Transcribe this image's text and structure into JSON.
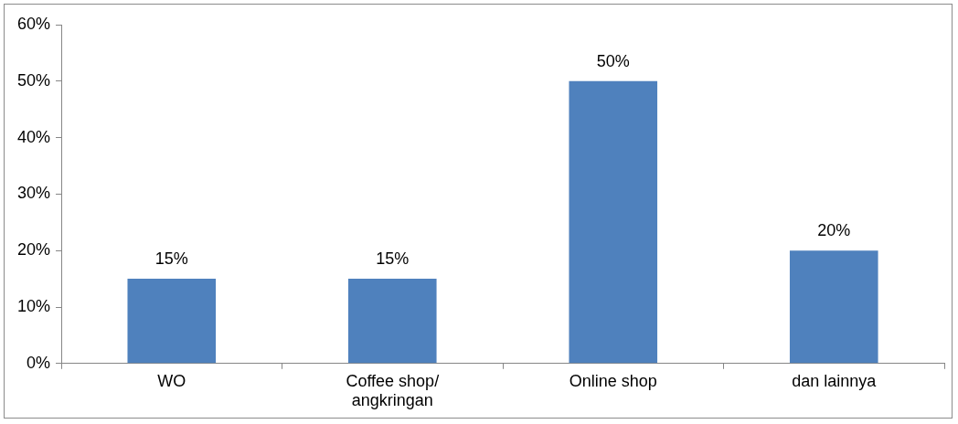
{
  "chart_data": {
    "type": "bar",
    "categories": [
      "WO",
      "Coffee shop/ angkringan",
      "Online shop",
      "dan lainnya"
    ],
    "values": [
      15,
      15,
      50,
      20
    ],
    "value_labels": [
      "15%",
      "15%",
      "50%",
      "20%"
    ],
    "color": "#4f81bd",
    "ylim": [
      0,
      60
    ],
    "yticks": [
      {
        "value": 0,
        "label": "0%"
      },
      {
        "value": 10,
        "label": "10%"
      },
      {
        "value": 20,
        "label": "20%"
      },
      {
        "value": 30,
        "label": "30%"
      },
      {
        "value": 40,
        "label": "40%"
      },
      {
        "value": 50,
        "label": "50%"
      },
      {
        "value": 60,
        "label": "60%"
      }
    ],
    "grid": false,
    "legend": false
  }
}
